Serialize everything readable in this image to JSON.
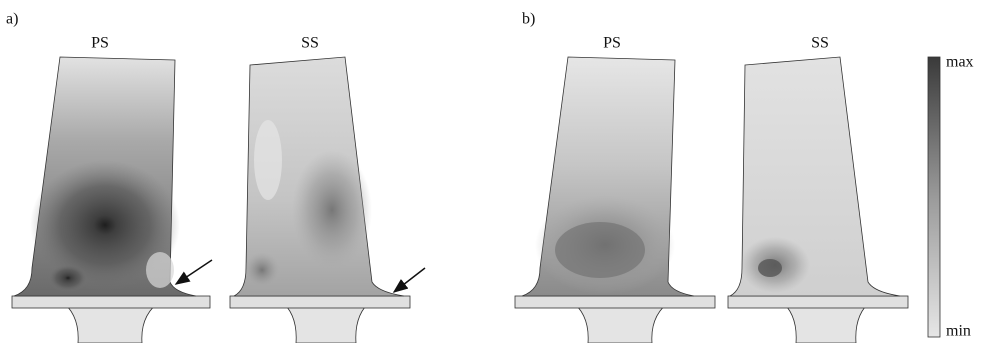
{
  "panels": [
    {
      "label": "a)",
      "views": [
        "PS",
        "SS"
      ]
    },
    {
      "label": "b)",
      "views": [
        "PS",
        "SS"
      ]
    }
  ],
  "colorbar": {
    "max": "max",
    "min": "min"
  }
}
